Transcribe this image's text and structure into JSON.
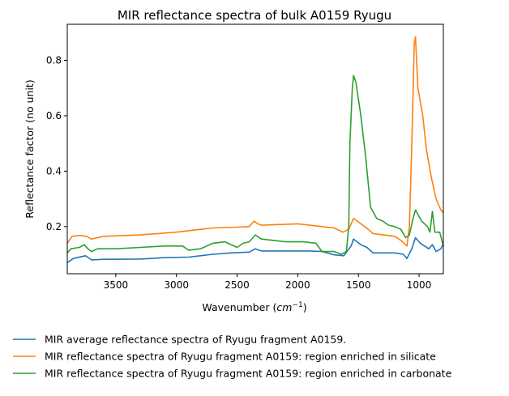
{
  "chart_data": {
    "type": "line",
    "title": "MIR reflectance spectra of bulk A0159 Ryugu",
    "xlabel": "Wavenumber",
    "xlabel_unit_base": "cm",
    "xlabel_unit_exp": "−1",
    "ylabel": "Reflectance factor (no unit)",
    "xlim": [
      3900,
      800
    ],
    "ylim": [
      0.03,
      0.93
    ],
    "x_reversed": true,
    "grid": false,
    "legend_placement": "below",
    "xticks": [
      3500,
      3000,
      2500,
      2000,
      1500,
      1000
    ],
    "yticks": [
      0.2,
      0.4,
      0.6,
      0.8
    ],
    "series": [
      {
        "name": "MIR average reflectance spectra of Ryugu fragment A0159.",
        "color": "#1f77b4",
        "x": [
          3900,
          3850,
          3750,
          3700,
          3600,
          3300,
          3100,
          2900,
          2700,
          2550,
          2400,
          2350,
          2300,
          2100,
          1900,
          1800,
          1700,
          1620,
          1560,
          1540,
          1480,
          1430,
          1380,
          1200,
          1130,
          1100,
          1060,
          1030,
          990,
          920,
          890,
          860,
          820,
          800
        ],
        "y": [
          0.07,
          0.085,
          0.095,
          0.08,
          0.082,
          0.083,
          0.088,
          0.09,
          0.1,
          0.105,
          0.108,
          0.12,
          0.112,
          0.112,
          0.112,
          0.11,
          0.098,
          0.095,
          0.13,
          0.155,
          0.135,
          0.125,
          0.105,
          0.105,
          0.1,
          0.085,
          0.12,
          0.16,
          0.14,
          0.12,
          0.135,
          0.11,
          0.12,
          0.14
        ]
      },
      {
        "name": "MIR reflectance spectra of Ryugu fragment A0159: region enriched in silicate",
        "color": "#ff7f0e",
        "x": [
          3900,
          3860,
          3800,
          3740,
          3700,
          3600,
          3300,
          3000,
          2800,
          2700,
          2500,
          2400,
          2360,
          2330,
          2300,
          2000,
          1900,
          1800,
          1700,
          1630,
          1580,
          1540,
          1480,
          1420,
          1380,
          1200,
          1150,
          1100,
          1080,
          1060,
          1040,
          1030,
          1010,
          970,
          940,
          900,
          860,
          820,
          800
        ],
        "y": [
          0.14,
          0.165,
          0.168,
          0.165,
          0.155,
          0.165,
          0.17,
          0.18,
          0.19,
          0.195,
          0.198,
          0.2,
          0.22,
          0.21,
          0.205,
          0.21,
          0.205,
          0.2,
          0.195,
          0.18,
          0.19,
          0.23,
          0.21,
          0.19,
          0.175,
          0.165,
          0.15,
          0.13,
          0.2,
          0.5,
          0.86,
          0.885,
          0.7,
          0.6,
          0.48,
          0.38,
          0.3,
          0.26,
          0.25
        ]
      },
      {
        "name": "MIR reflectance spectra of Ryugu fragment A0159: region enriched in carbonate",
        "color": "#2ca02c",
        "x": [
          3900,
          3870,
          3800,
          3760,
          3730,
          3700,
          3650,
          3500,
          3300,
          3100,
          2950,
          2900,
          2800,
          2700,
          2600,
          2500,
          2450,
          2400,
          2350,
          2300,
          2100,
          1950,
          1850,
          1800,
          1700,
          1640,
          1600,
          1580,
          1570,
          1550,
          1540,
          1520,
          1480,
          1440,
          1400,
          1350,
          1300,
          1250,
          1200,
          1150,
          1110,
          1080,
          1050,
          1030,
          980,
          930,
          910,
          890,
          870,
          830,
          800
        ],
        "y": [
          0.105,
          0.12,
          0.125,
          0.135,
          0.12,
          0.11,
          0.12,
          0.12,
          0.125,
          0.13,
          0.13,
          0.115,
          0.12,
          0.14,
          0.145,
          0.125,
          0.14,
          0.145,
          0.17,
          0.155,
          0.145,
          0.145,
          0.14,
          0.11,
          0.11,
          0.1,
          0.11,
          0.2,
          0.5,
          0.7,
          0.745,
          0.72,
          0.6,
          0.45,
          0.27,
          0.23,
          0.22,
          0.205,
          0.2,
          0.19,
          0.16,
          0.17,
          0.23,
          0.26,
          0.22,
          0.2,
          0.18,
          0.255,
          0.18,
          0.18,
          0.13
        ]
      }
    ]
  }
}
